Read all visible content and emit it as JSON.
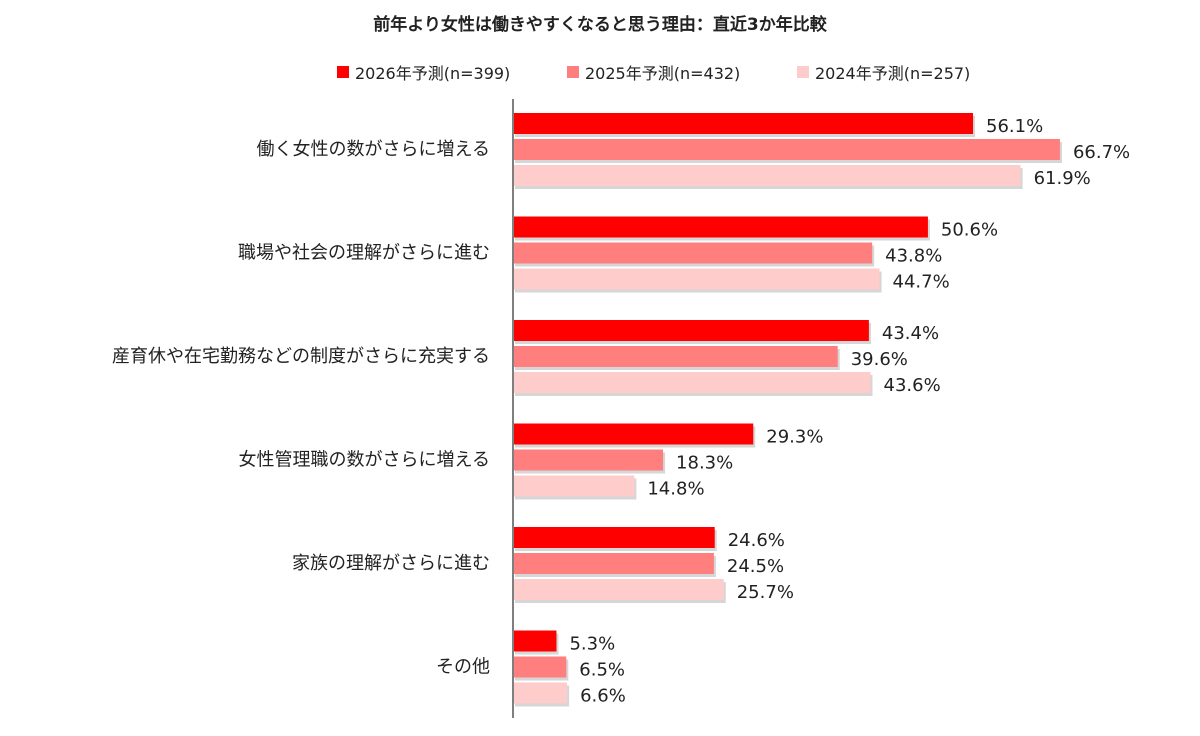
{
  "chart_data": {
    "type": "bar",
    "orientation": "horizontal",
    "title": "前年より女性は働きやすくなると思う理由：直近3か年比較",
    "legend_position": "top",
    "grid": false,
    "unit": "%",
    "xlim": [
      0,
      70
    ],
    "categories": [
      "働く女性の数がさらに増える",
      "職場や社会の理解がさらに進む",
      "産育休や在宅勤務などの制度がさらに充実する",
      "女性管理職の数がさらに増える",
      "家族の理解がさらに進む",
      "その他"
    ],
    "series": [
      {
        "name": "2026年予測(n=399)",
        "color": "#ff0000",
        "values": [
          56.1,
          50.6,
          43.4,
          29.3,
          24.6,
          5.3
        ]
      },
      {
        "name": "2025年予測(n=432)",
        "color": "#ff7f7f",
        "values": [
          66.7,
          43.8,
          39.6,
          18.3,
          24.5,
          6.5
        ]
      },
      {
        "name": "2024年予測(n=257)",
        "color": "#ffcccc",
        "values": [
          61.9,
          44.7,
          43.6,
          14.8,
          25.7,
          6.6
        ]
      }
    ],
    "value_labels": [
      [
        "56.1%",
        "50.6%",
        "43.4%",
        "29.3%",
        "24.6%",
        "5.3%"
      ],
      [
        "66.7%",
        "43.8%",
        "39.6%",
        "18.3%",
        "24.5%",
        "6.5%"
      ],
      [
        "61.9%",
        "44.7%",
        "43.6%",
        "14.8%",
        "25.7%",
        "6.6%"
      ]
    ]
  }
}
